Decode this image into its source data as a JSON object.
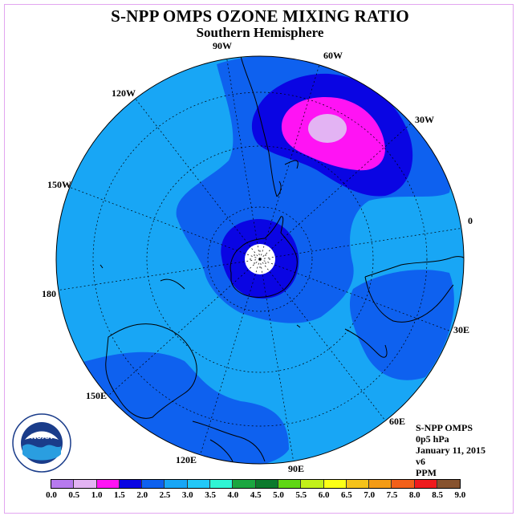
{
  "title": "S-NPP OMPS OZONE MIXING RATIO",
  "subtitle": "Southern Hemisphere",
  "longitude_labels": [
    "90W",
    "60W",
    "30W",
    "0",
    "30E",
    "60E",
    "90E",
    "120E",
    "150E",
    "180",
    "150W",
    "120W"
  ],
  "info": {
    "instrument": "S-NPP OMPS",
    "level": "0p5 hPa",
    "date": "January 11, 2015",
    "version": "v6",
    "units": "PPM"
  },
  "colorbar": {
    "colors": [
      "#b77aee",
      "#e3b3f3",
      "#ff13f4",
      "#0a05e3",
      "#0e61ef",
      "#18a6f5",
      "#23c8f7",
      "#2ff5d4",
      "#1ba640",
      "#0c7a2c",
      "#5fd613",
      "#c2f01a",
      "#fbff16",
      "#f5c21a",
      "#f49b15",
      "#f2601a",
      "#ef1b1d",
      "#87532e"
    ],
    "ticks": [
      "0.0",
      "0.5",
      "1.0",
      "1.5",
      "2.0",
      "2.5",
      "3.0",
      "3.5",
      "4.0",
      "4.5",
      "5.0",
      "5.5",
      "6.0",
      "6.5",
      "7.0",
      "7.5",
      "8.0",
      "8.5",
      "9.0"
    ]
  },
  "logo": {
    "text": "NOAA",
    "ring_text": "NATIONAL OCEANIC AND ATMOSPHERIC ADMINISTRATION U.S. DEPARTMENT OF COMMERCE"
  },
  "map_colors": {
    "background_level": "#18a6f5",
    "low_level": "#0e61ef",
    "lower_level": "#0a05e3",
    "min_level": "#ff13f4",
    "core_level": "#e3b3f3",
    "pole": "#ffffff"
  }
}
